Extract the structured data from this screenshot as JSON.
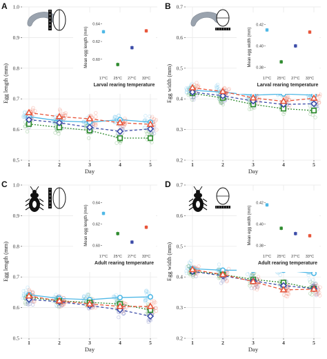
{
  "colors": {
    "17C": "#4fb8e6",
    "25C": "#2e8b2e",
    "27C": "#3c4ca8",
    "33C": "#e8553a",
    "panel_bg": "#ffffff",
    "grid": "#e6e6e6"
  },
  "chart_data": [
    {
      "panel": "A",
      "type": "line",
      "ylabel": "Egg length (mm)",
      "xlabel": "Day",
      "x": [
        1,
        2,
        3,
        4,
        5
      ],
      "ylim": [
        0.5,
        1.0
      ],
      "yticks": [
        "0.5",
        "0.6",
        "0.7",
        "0.8",
        "0.9",
        "1.0"
      ],
      "icon": "larva-icon",
      "series": [
        {
          "name": "17°C",
          "values": [
            0.642,
            0.628,
            0.624,
            0.632,
            0.624
          ]
        },
        {
          "name": "25°C",
          "values": [
            0.618,
            0.607,
            0.597,
            0.572,
            0.572
          ]
        },
        {
          "name": "27°C",
          "values": [
            0.632,
            0.622,
            0.607,
            0.594,
            0.602
          ]
        },
        {
          "name": "33°C",
          "values": [
            0.655,
            0.642,
            0.635,
            0.622,
            0.617
          ]
        }
      ],
      "inset": {
        "ylabel": "Mean egg length (mm)",
        "xlabel": "Larval rearing temperature",
        "categories": [
          "17°C",
          "25°C",
          "27°C",
          "33°C"
        ],
        "ylim": [
          0.585,
          0.645
        ],
        "yticks": [
          "0.60",
          "0.62",
          "0.64"
        ],
        "values": [
          0.631,
          0.594,
          0.613,
          0.632
        ]
      }
    },
    {
      "panel": "B",
      "type": "line",
      "ylabel": "Egg width (mm)",
      "xlabel": "Day",
      "x": [
        1,
        2,
        3,
        4,
        5
      ],
      "ylim": [
        0.2,
        0.7
      ],
      "yticks": [
        "0.2",
        "0.3",
        "0.4",
        "0.5",
        "0.6",
        "0.7"
      ],
      "icon": "larva-icon",
      "series": [
        {
          "name": "17°C",
          "values": [
            0.428,
            0.422,
            0.412,
            0.416,
            0.412
          ]
        },
        {
          "name": "25°C",
          "values": [
            0.418,
            0.403,
            0.382,
            0.368,
            0.362
          ]
        },
        {
          "name": "27°C",
          "values": [
            0.422,
            0.41,
            0.393,
            0.382,
            0.384
          ]
        },
        {
          "name": "33°C",
          "values": [
            0.436,
            0.424,
            0.403,
            0.392,
            0.402
          ]
        }
      ],
      "inset": {
        "ylabel": "Mean egg width (mm)",
        "xlabel": "Larval rearing temperature",
        "categories": [
          "17°C",
          "25°C",
          "27°C",
          "33°C"
        ],
        "ylim": [
          0.375,
          0.425
        ],
        "yticks": [
          "0.38",
          "0.40",
          "0.42"
        ],
        "values": [
          0.415,
          0.385,
          0.4,
          0.413
        ]
      }
    },
    {
      "panel": "C",
      "type": "line",
      "ylabel": "Egg length (mm)",
      "xlabel": "Day",
      "x": [
        1,
        2,
        3,
        4,
        5
      ],
      "ylim": [
        0.5,
        1.0
      ],
      "yticks": [
        "0.5",
        "0.6",
        "0.7",
        "0.8",
        "0.9",
        "1.0"
      ],
      "icon": "beetle-icon",
      "series": [
        {
          "name": "17°C",
          "values": [
            0.642,
            0.63,
            0.626,
            0.633,
            0.635
          ]
        },
        {
          "name": "25°C",
          "values": [
            0.633,
            0.622,
            0.617,
            0.612,
            0.592
          ]
        },
        {
          "name": "27°C",
          "values": [
            0.627,
            0.619,
            0.607,
            0.593,
            0.572
          ]
        },
        {
          "name": "33°C",
          "values": [
            0.638,
            0.622,
            0.612,
            0.604,
            0.604
          ]
        }
      ],
      "inset": {
        "ylabel": "Mean egg length (mm)",
        "xlabel": "Adult rearing temperature",
        "categories": [
          "17°C",
          "25°C",
          "27°C",
          "33°C"
        ],
        "ylim": [
          0.595,
          0.645
        ],
        "yticks": [
          "0.60",
          "0.62",
          "0.64"
        ],
        "values": [
          0.63,
          0.611,
          0.603,
          0.617
        ]
      }
    },
    {
      "panel": "D",
      "type": "line",
      "ylabel": "Egg width (mm)",
      "xlabel": "Day",
      "x": [
        1,
        2,
        3,
        4,
        5
      ],
      "ylim": [
        0.2,
        0.7
      ],
      "yticks": [
        "0.2",
        "0.3",
        "0.4",
        "0.5",
        "0.6",
        "0.7"
      ],
      "icon": "beetle-icon",
      "series": [
        {
          "name": "17°C",
          "values": [
            0.427,
            0.422,
            0.422,
            0.422,
            0.412
          ]
        },
        {
          "name": "25°C",
          "values": [
            0.418,
            0.408,
            0.392,
            0.382,
            0.362
          ]
        },
        {
          "name": "27°C",
          "values": [
            0.418,
            0.404,
            0.387,
            0.372,
            0.362
          ]
        },
        {
          "name": "33°C",
          "values": [
            0.424,
            0.408,
            0.385,
            0.358,
            0.36
          ]
        }
      ],
      "inset": {
        "ylabel": "Mean egg width (mm)",
        "xlabel": "Adult rearing temperature",
        "categories": [
          "17°C",
          "25°C",
          "27°C",
          "33°C"
        ],
        "ylim": [
          0.375,
          0.425
        ],
        "yticks": [
          "0.38",
          "0.40",
          "0.42"
        ],
        "values": [
          0.418,
          0.396,
          0.391,
          0.389
        ]
      }
    }
  ]
}
